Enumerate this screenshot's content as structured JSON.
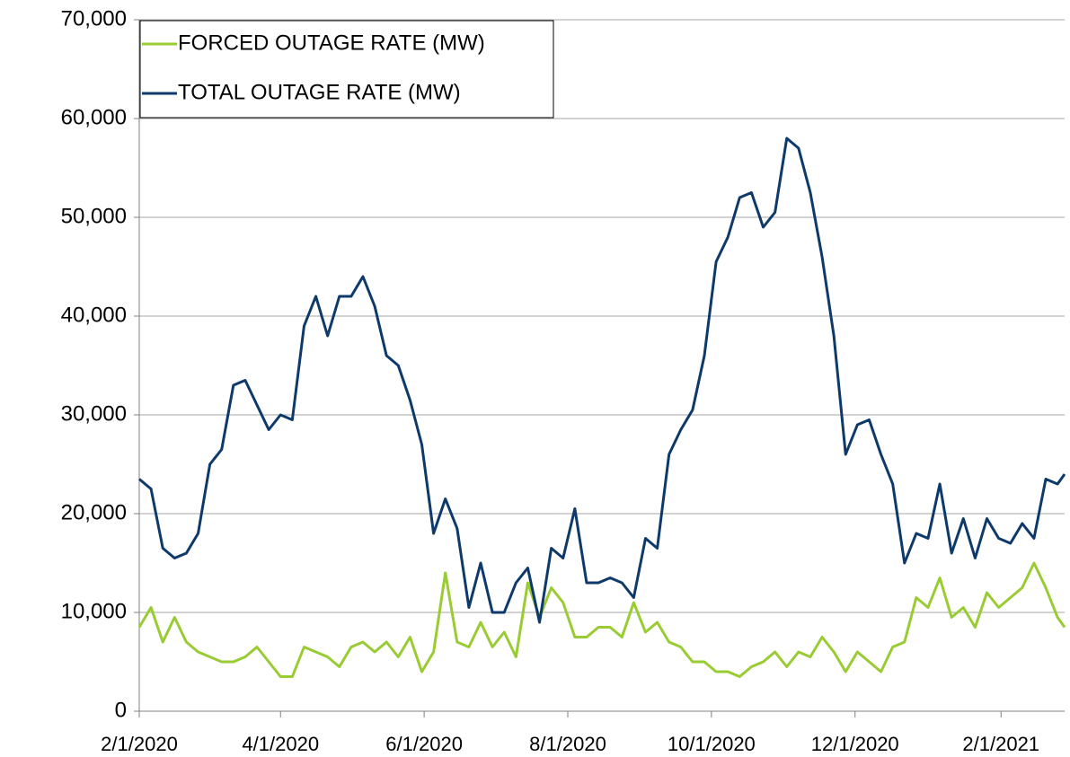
{
  "chart_data": {
    "type": "line",
    "x": [
      "2/1/2020",
      "2/6/2020",
      "2/11/2020",
      "2/16/2020",
      "2/21/2020",
      "2/26/2020",
      "3/2/2020",
      "3/7/2020",
      "3/12/2020",
      "3/17/2020",
      "3/22/2020",
      "3/27/2020",
      "4/1/2020",
      "4/6/2020",
      "4/11/2020",
      "4/16/2020",
      "4/21/2020",
      "4/26/2020",
      "5/1/2020",
      "5/6/2020",
      "5/11/2020",
      "5/16/2020",
      "5/21/2020",
      "5/26/2020",
      "5/31/2020",
      "6/5/2020",
      "6/10/2020",
      "6/15/2020",
      "6/20/2020",
      "6/25/2020",
      "6/30/2020",
      "7/5/2020",
      "7/10/2020",
      "7/15/2020",
      "7/20/2020",
      "7/25/2020",
      "7/30/2020",
      "8/4/2020",
      "8/9/2020",
      "8/14/2020",
      "8/19/2020",
      "8/24/2020",
      "8/29/2020",
      "9/3/2020",
      "9/8/2020",
      "9/13/2020",
      "9/18/2020",
      "9/23/2020",
      "9/28/2020",
      "10/3/2020",
      "10/8/2020",
      "10/13/2020",
      "10/18/2020",
      "10/23/2020",
      "10/28/2020",
      "11/2/2020",
      "11/7/2020",
      "11/12/2020",
      "11/17/2020",
      "11/22/2020",
      "11/27/2020",
      "12/2/2020",
      "12/7/2020",
      "12/12/2020",
      "12/17/2020",
      "12/22/2020",
      "12/27/2020",
      "1/1/2021",
      "1/6/2021",
      "1/11/2021",
      "1/16/2021",
      "1/21/2021",
      "1/26/2021",
      "1/31/2021",
      "2/5/2021",
      "2/10/2021",
      "2/15/2021",
      "2/20/2021",
      "2/25/2021",
      "2/28/2021"
    ],
    "series": [
      {
        "name": "FORCED OUTAGE RATE (MW)",
        "color": "#99cc33",
        "values": [
          8500,
          10500,
          7000,
          9500,
          7000,
          6000,
          5500,
          5000,
          5000,
          5500,
          6500,
          5000,
          3500,
          3500,
          6500,
          6000,
          5500,
          4500,
          6500,
          7000,
          6000,
          7000,
          5500,
          7500,
          4000,
          6000,
          14000,
          7000,
          6500,
          9000,
          6500,
          8000,
          5500,
          13000,
          9500,
          12500,
          11000,
          7500,
          7500,
          8500,
          8500,
          7500,
          11000,
          8000,
          9000,
          7000,
          6500,
          5000,
          5000,
          4000,
          4000,
          3500,
          4500,
          5000,
          6000,
          4500,
          6000,
          5500,
          7500,
          6000,
          4000,
          6000,
          5000,
          4000,
          6500,
          7000,
          11500,
          10500,
          13500,
          9500,
          10500,
          8500,
          12000,
          10500,
          11500,
          12500,
          15000,
          12500,
          9500,
          8500
        ]
      },
      {
        "name": "TOTAL OUTAGE RATE (MW)",
        "color": "#0e3a6b",
        "values": [
          23500,
          22500,
          16500,
          15500,
          16000,
          18000,
          25000,
          26500,
          33000,
          33500,
          31000,
          28500,
          30000,
          29500,
          39000,
          42000,
          38000,
          42000,
          42000,
          44000,
          41000,
          36000,
          35000,
          31500,
          27000,
          18000,
          21500,
          18500,
          10500,
          15000,
          10000,
          10000,
          13000,
          14500,
          9000,
          16500,
          15500,
          20500,
          13000,
          13000,
          13500,
          13000,
          11500,
          17500,
          16500,
          26000,
          28500,
          30500,
          36000,
          45500,
          48000,
          52000,
          52500,
          49000,
          50500,
          58000,
          57000,
          52500,
          46000,
          38000,
          26000,
          29000,
          29500,
          26000,
          23000,
          15000,
          18000,
          17500,
          23000,
          16000,
          19500,
          15500,
          19500,
          17500,
          17000,
          19000,
          17500,
          23500,
          23000,
          24000
        ]
      }
    ],
    "xlim": [
      "2/1/2020",
      "2/28/2021"
    ],
    "xticks": [
      "2/1/2020",
      "4/1/2020",
      "6/1/2020",
      "8/1/2020",
      "10/1/2020",
      "12/1/2020",
      "2/1/2021"
    ],
    "ylim": [
      0,
      70000
    ],
    "yticks": [
      0,
      {
        "value": 10000,
        "label": "10,000"
      },
      {
        "value": 20000,
        "label": "20,000"
      },
      {
        "value": 30000,
        "label": "30,000"
      },
      {
        "value": 40000,
        "label": "40,000"
      },
      {
        "value": 50000,
        "label": "50,000"
      },
      {
        "value": 60000,
        "label": "60,000"
      },
      {
        "value": 70000,
        "label": "70,000"
      }
    ],
    "grid": true,
    "legend": "top-left"
  }
}
